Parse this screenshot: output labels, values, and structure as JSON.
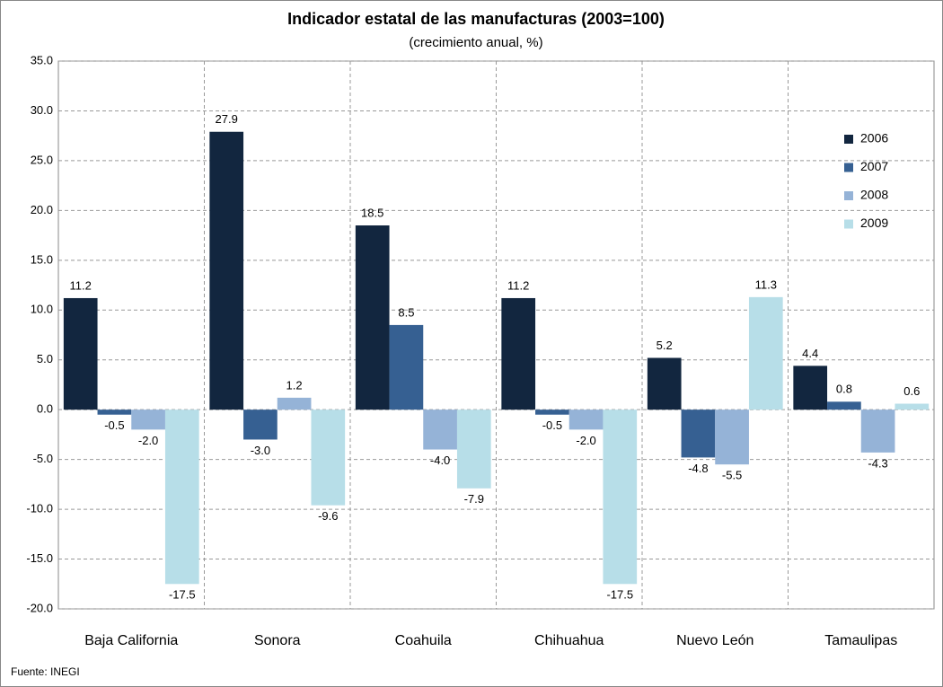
{
  "chart_data": {
    "type": "bar",
    "title": "Indicador estatal de las manufacturas (2003=100)",
    "subtitle": "(crecimiento anual, %)",
    "source": "Fuente: INEGI",
    "categories": [
      "Baja California",
      "Sonora",
      "Coahuila",
      "Chihuahua",
      "Nuevo León",
      "Tamaulipas"
    ],
    "series": [
      {
        "name": "2006",
        "color": "#12263f",
        "values": [
          11.2,
          27.9,
          18.5,
          11.2,
          5.2,
          4.4
        ],
        "value_labels": [
          "11.2",
          "27.9",
          "18.5",
          "11.2",
          "5.2",
          "4.4"
        ]
      },
      {
        "name": "2007",
        "color": "#366092",
        "values": [
          -0.5,
          -3.0,
          8.5,
          -0.5,
          -4.8,
          0.8
        ],
        "value_labels": [
          "-0.5",
          "-3.0",
          "8.5",
          "-0.5",
          "-4.8",
          "0.8"
        ]
      },
      {
        "name": "2008",
        "color": "#95b3d7",
        "values": [
          -2.0,
          1.2,
          -4.0,
          -2.0,
          -5.5,
          -4.3
        ],
        "value_labels": [
          "-2.0",
          "1.2",
          "-4.0",
          "-2.0",
          "-5.5",
          "-4.3"
        ]
      },
      {
        "name": "2009",
        "color": "#b7dee8",
        "values": [
          -17.5,
          -9.6,
          -7.9,
          -17.5,
          11.3,
          0.6
        ],
        "value_labels": [
          "-17.5",
          "-9.6",
          "-7.9",
          "-17.5",
          "11.3",
          "0.6"
        ]
      }
    ],
    "ylim": [
      -20,
      35
    ],
    "yticks": [
      {
        "value": -20,
        "label": "-20.0"
      },
      {
        "value": -15,
        "label": "-15.0"
      },
      {
        "value": -10,
        "label": "-10.0"
      },
      {
        "value": -5,
        "label": "-5.0"
      },
      {
        "value": 0,
        "label": "0.0"
      },
      {
        "value": 5,
        "label": "5.0"
      },
      {
        "value": 10,
        "label": "10.0"
      },
      {
        "value": 15,
        "label": "15.0"
      },
      {
        "value": 20,
        "label": "20.0"
      },
      {
        "value": 25,
        "label": "25.0"
      },
      {
        "value": 30,
        "label": "30.0"
      },
      {
        "value": 35,
        "label": "35.0"
      }
    ],
    "grid": true,
    "legend": "upper right"
  }
}
